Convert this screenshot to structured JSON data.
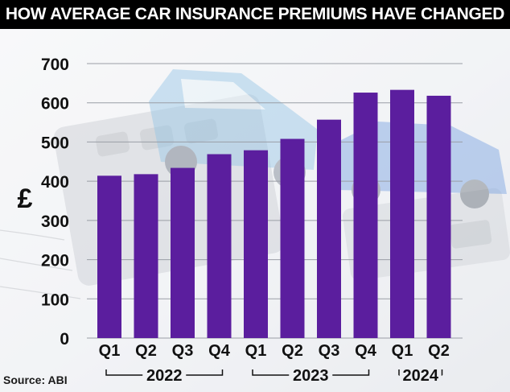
{
  "title": "HOW AVERAGE CAR INSURANCE PREMIUMS HAVE CHANGED",
  "source": "Source: ABI",
  "colors": {
    "bar": "#5b1e9e",
    "title_bg": "#000000",
    "title_text": "#ffffff"
  },
  "chart_data": {
    "type": "bar",
    "title": "HOW AVERAGE CAR INSURANCE PREMIUMS HAVE CHANGED",
    "ylabel": "£",
    "xlabel": "",
    "ylim": [
      0,
      700
    ],
    "yticks": [
      0,
      100,
      200,
      300,
      400,
      500,
      600,
      700
    ],
    "grid": true,
    "categories": [
      "Q1",
      "Q2",
      "Q3",
      "Q4",
      "Q1",
      "Q2",
      "Q3",
      "Q4",
      "Q1",
      "Q2"
    ],
    "values": [
      414,
      418,
      434,
      469,
      479,
      508,
      557,
      626,
      633,
      618
    ],
    "year_groups": [
      {
        "label": "2022",
        "start": 0,
        "end": 3
      },
      {
        "label": "2023",
        "start": 4,
        "end": 7
      },
      {
        "label": "2024",
        "start": 8,
        "end": 9
      }
    ]
  }
}
